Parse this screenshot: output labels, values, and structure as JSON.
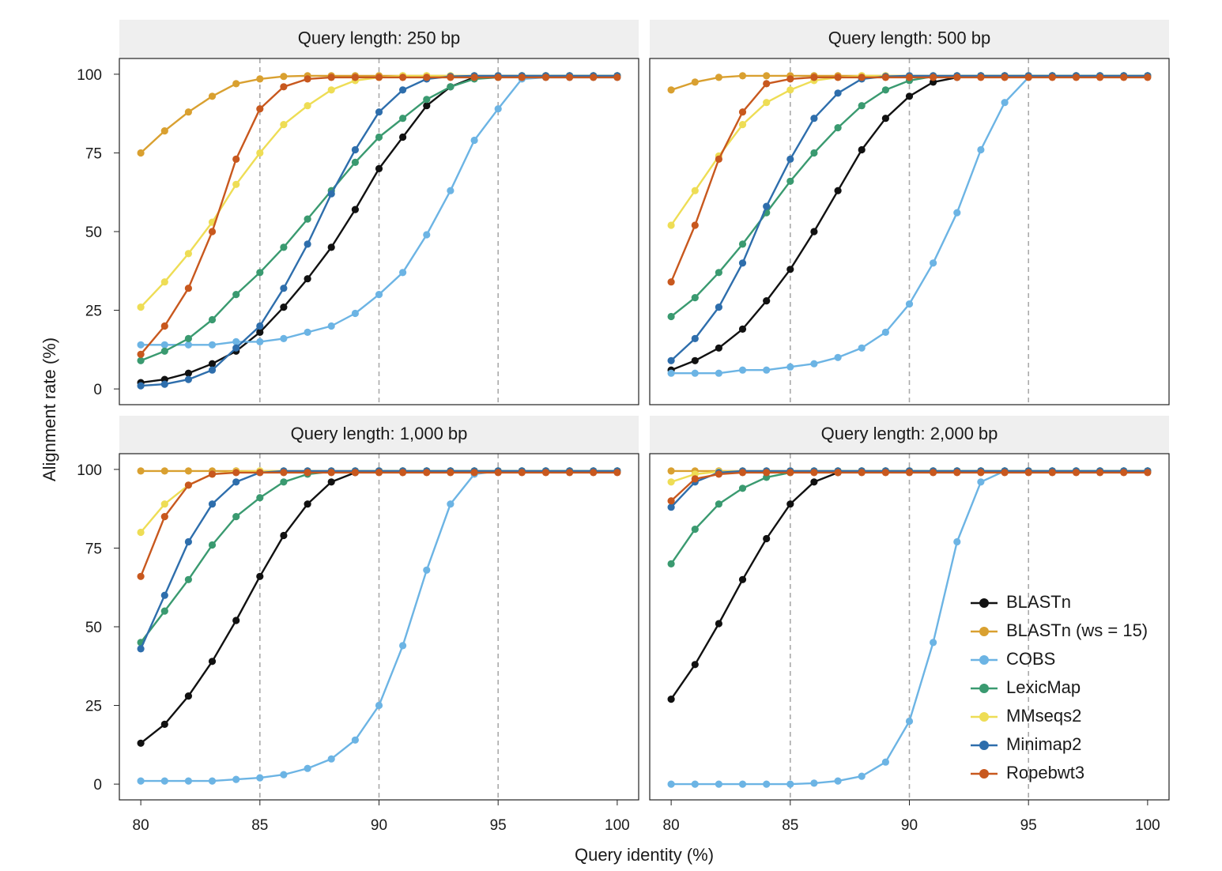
{
  "xlabel": "Query identity (%)",
  "ylabel": "Alignment rate (%)",
  "xticks": [
    "80",
    "85",
    "90",
    "95",
    "100"
  ],
  "yticks": [
    "0",
    "25",
    "50",
    "75",
    "100"
  ],
  "panels": [
    {
      "title": "Query length: 250 bp"
    },
    {
      "title": "Query length: 500 bp"
    },
    {
      "title": "Query length: 1,000 bp"
    },
    {
      "title": "Query length: 2,000 bp"
    }
  ],
  "legend": [
    {
      "label": "BLASTn",
      "color": "#111111"
    },
    {
      "label": "BLASTn (ws = 15)",
      "color": "#D9A030"
    },
    {
      "label": "COBS",
      "color": "#6CB4E4"
    },
    {
      "label": "LexicMap",
      "color": "#3A9A70"
    },
    {
      "label": "MMseqs2",
      "color": "#EEDD55"
    },
    {
      "label": "Minimap2",
      "color": "#2E6EAC"
    },
    {
      "label": "Ropebwt3",
      "color": "#C8581E"
    }
  ],
  "chart_data": [
    {
      "type": "line",
      "title": "Query length: 250 bp",
      "xlabel": "Query identity (%)",
      "ylabel": "Alignment rate (%)",
      "xlim": [
        79.1,
        100.9
      ],
      "ylim": [
        -5,
        105
      ],
      "reference_lines_x": [
        85,
        90,
        95
      ],
      "x": [
        80,
        81,
        82,
        83,
        84,
        85,
        86,
        87,
        88,
        89,
        90,
        91,
        92,
        93,
        94,
        95,
        96,
        97,
        98,
        99,
        100
      ],
      "series": [
        {
          "name": "BLASTn",
          "color": "#111111",
          "values": [
            2,
            3,
            5,
            8,
            12,
            18,
            26,
            35,
            45,
            57,
            70,
            80,
            90,
            96,
            99,
            99.5,
            99.5,
            99.5,
            99.5,
            99.5,
            99.5
          ]
        },
        {
          "name": "BLASTn (ws = 15)",
          "color": "#D9A030",
          "values": [
            75,
            82,
            88,
            93,
            97,
            98.5,
            99.3,
            99.5,
            99.5,
            99.5,
            99.5,
            99.5,
            99.5,
            99.5,
            99.5,
            99.5,
            99.5,
            99.5,
            99.5,
            99.5,
            99.5
          ]
        },
        {
          "name": "COBS",
          "color": "#6CB4E4",
          "values": [
            14,
            14,
            14,
            14,
            15,
            15,
            16,
            18,
            20,
            24,
            30,
            37,
            49,
            63,
            79,
            89,
            98.5,
            99,
            99,
            99,
            99
          ]
        },
        {
          "name": "LexicMap",
          "color": "#3A9A70",
          "values": [
            9,
            12,
            16,
            22,
            30,
            37,
            45,
            54,
            63,
            72,
            80,
            86,
            92,
            96,
            98.5,
            99,
            99.5,
            99.5,
            99.5,
            99.5,
            99.5
          ]
        },
        {
          "name": "MMseqs2",
          "color": "#EEDD55",
          "values": [
            26,
            34,
            43,
            53,
            65,
            75,
            84,
            90,
            95,
            98,
            99,
            99.5,
            99.5,
            99.5,
            99.5,
            99.5,
            99.5,
            99.5,
            99.5,
            99.5,
            99.5
          ]
        },
        {
          "name": "Minimap2",
          "color": "#2E6EAC",
          "values": [
            1,
            1.5,
            3,
            6,
            13,
            20,
            32,
            46,
            62,
            76,
            88,
            95,
            98.5,
            99.3,
            99.5,
            99.5,
            99.5,
            99.5,
            99.5,
            99.5,
            99.5
          ]
        },
        {
          "name": "Ropebwt3",
          "color": "#C8581E",
          "values": [
            11,
            20,
            32,
            50,
            73,
            89,
            96,
            98.5,
            99,
            99,
            99,
            99,
            99,
            99,
            99,
            99,
            99,
            99,
            99,
            99,
            99
          ]
        }
      ]
    },
    {
      "type": "line",
      "title": "Query length: 500 bp",
      "xlabel": "Query identity (%)",
      "ylabel": "Alignment rate (%)",
      "xlim": [
        79.1,
        100.9
      ],
      "ylim": [
        -5,
        105
      ],
      "reference_lines_x": [
        85,
        90,
        95
      ],
      "x": [
        80,
        81,
        82,
        83,
        84,
        85,
        86,
        87,
        88,
        89,
        90,
        91,
        92,
        93,
        94,
        95,
        96,
        97,
        98,
        99,
        100
      ],
      "series": [
        {
          "name": "BLASTn",
          "color": "#111111",
          "values": [
            6,
            9,
            13,
            19,
            28,
            38,
            50,
            63,
            76,
            86,
            93,
            97.5,
            99,
            99.5,
            99.5,
            99.5,
            99.5,
            99.5,
            99.5,
            99.5,
            99.5
          ]
        },
        {
          "name": "BLASTn (ws = 15)",
          "color": "#D9A030",
          "values": [
            95,
            97.5,
            99,
            99.5,
            99.5,
            99.5,
            99.5,
            99.5,
            99.5,
            99.5,
            99.5,
            99.5,
            99.5,
            99.5,
            99.5,
            99.5,
            99.5,
            99.5,
            99.5,
            99.5,
            99.5
          ]
        },
        {
          "name": "COBS",
          "color": "#6CB4E4",
          "values": [
            5,
            5,
            5,
            6,
            6,
            7,
            8,
            10,
            13,
            18,
            27,
            40,
            56,
            76,
            91,
            99,
            99.5,
            99.5,
            99.5,
            99.5,
            99.5
          ]
        },
        {
          "name": "LexicMap",
          "color": "#3A9A70",
          "values": [
            23,
            29,
            37,
            46,
            56,
            66,
            75,
            83,
            90,
            95,
            98,
            99.3,
            99.5,
            99.5,
            99.5,
            99.5,
            99.5,
            99.5,
            99.5,
            99.5,
            99.5
          ]
        },
        {
          "name": "MMseqs2",
          "color": "#EEDD55",
          "values": [
            52,
            63,
            74,
            84,
            91,
            95,
            98,
            99,
            99.5,
            99.5,
            99.5,
            99.5,
            99.5,
            99.5,
            99.5,
            99.5,
            99.5,
            99.5,
            99.5,
            99.5,
            99.5
          ]
        },
        {
          "name": "Minimap2",
          "color": "#2E6EAC",
          "values": [
            9,
            16,
            26,
            40,
            58,
            73,
            86,
            94,
            98.5,
            99.3,
            99.5,
            99.5,
            99.5,
            99.5,
            99.5,
            99.5,
            99.5,
            99.5,
            99.5,
            99.5,
            99.5
          ]
        },
        {
          "name": "Ropebwt3",
          "color": "#C8581E",
          "values": [
            34,
            52,
            73,
            88,
            97,
            98.5,
            99,
            99,
            99,
            99,
            99,
            99,
            99,
            99,
            99,
            99,
            99,
            99,
            99,
            99,
            99
          ]
        }
      ]
    },
    {
      "type": "line",
      "title": "Query length: 1,000 bp",
      "xlabel": "Query identity (%)",
      "ylabel": "Alignment rate (%)",
      "xlim": [
        79.1,
        100.9
      ],
      "ylim": [
        -5,
        105
      ],
      "reference_lines_x": [
        85,
        90,
        95
      ],
      "x": [
        80,
        81,
        82,
        83,
        84,
        85,
        86,
        87,
        88,
        89,
        90,
        91,
        92,
        93,
        94,
        95,
        96,
        97,
        98,
        99,
        100
      ],
      "series": [
        {
          "name": "BLASTn",
          "color": "#111111",
          "values": [
            13,
            19,
            28,
            39,
            52,
            66,
            79,
            89,
            96,
            99,
            99.5,
            99.5,
            99.5,
            99.5,
            99.5,
            99.5,
            99.5,
            99.5,
            99.5,
            99.5,
            99.5
          ]
        },
        {
          "name": "BLASTn (ws = 15)",
          "color": "#D9A030",
          "values": [
            99.5,
            99.5,
            99.5,
            99.5,
            99.5,
            99.5,
            99.5,
            99.5,
            99.5,
            99.5,
            99.5,
            99.5,
            99.5,
            99.5,
            99.5,
            99.5,
            99.5,
            99.5,
            99.5,
            99.5,
            99.5
          ]
        },
        {
          "name": "COBS",
          "color": "#6CB4E4",
          "values": [
            1,
            1,
            1,
            1,
            1.5,
            2,
            3,
            5,
            8,
            14,
            25,
            44,
            68,
            89,
            98.5,
            99.5,
            99.5,
            99.5,
            99.5,
            99.5,
            99.5
          ]
        },
        {
          "name": "LexicMap",
          "color": "#3A9A70",
          "values": [
            45,
            55,
            65,
            76,
            85,
            91,
            96,
            98.5,
            99.3,
            99.5,
            99.5,
            99.5,
            99.5,
            99.5,
            99.5,
            99.5,
            99.5,
            99.5,
            99.5,
            99.5,
            99.5
          ]
        },
        {
          "name": "MMseqs2",
          "color": "#EEDD55",
          "values": [
            80,
            89,
            95,
            98.5,
            99.3,
            99.5,
            99.5,
            99.5,
            99.5,
            99.5,
            99.5,
            99.5,
            99.5,
            99.5,
            99.5,
            99.5,
            99.5,
            99.5,
            99.5,
            99.5,
            99.5
          ]
        },
        {
          "name": "Minimap2",
          "color": "#2E6EAC",
          "values": [
            43,
            60,
            77,
            89,
            96,
            99,
            99.5,
            99.5,
            99.5,
            99.5,
            99.5,
            99.5,
            99.5,
            99.5,
            99.5,
            99.5,
            99.5,
            99.5,
            99.5,
            99.5,
            99.5
          ]
        },
        {
          "name": "Ropebwt3",
          "color": "#C8581E",
          "values": [
            66,
            85,
            95,
            98.5,
            99,
            99,
            99,
            99,
            99,
            99,
            99,
            99,
            99,
            99,
            99,
            99,
            99,
            99,
            99,
            99,
            99
          ]
        }
      ]
    },
    {
      "type": "line",
      "title": "Query length: 2,000 bp",
      "xlabel": "Query identity (%)",
      "ylabel": "Alignment rate (%)",
      "xlim": [
        79.1,
        100.9
      ],
      "ylim": [
        -5,
        105
      ],
      "reference_lines_x": [
        85,
        90,
        95
      ],
      "legend_position": "bottom-right",
      "x": [
        80,
        81,
        82,
        83,
        84,
        85,
        86,
        87,
        88,
        89,
        90,
        91,
        92,
        93,
        94,
        95,
        96,
        97,
        98,
        99,
        100
      ],
      "series": [
        {
          "name": "BLASTn",
          "color": "#111111",
          "values": [
            27,
            38,
            51,
            65,
            78,
            89,
            96,
            99,
            99.5,
            99.5,
            99.5,
            99.5,
            99.5,
            99.5,
            99.5,
            99.5,
            99.5,
            99.5,
            99.5,
            99.5,
            99.5
          ]
        },
        {
          "name": "BLASTn (ws = 15)",
          "color": "#D9A030",
          "values": [
            99.5,
            99.5,
            99.5,
            99.5,
            99.5,
            99.5,
            99.5,
            99.5,
            99.5,
            99.5,
            99.5,
            99.5,
            99.5,
            99.5,
            99.5,
            99.5,
            99.5,
            99.5,
            99.5,
            99.5,
            99.5
          ]
        },
        {
          "name": "COBS",
          "color": "#6CB4E4",
          "values": [
            0,
            0,
            0,
            0,
            0,
            0,
            0.3,
            1,
            2.5,
            7,
            20,
            45,
            77,
            96,
            99.5,
            99.5,
            99.5,
            99.5,
            99.5,
            99.5,
            99.5
          ]
        },
        {
          "name": "LexicMap",
          "color": "#3A9A70",
          "values": [
            70,
            81,
            89,
            94,
            97.5,
            99,
            99.5,
            99.5,
            99.5,
            99.5,
            99.5,
            99.5,
            99.5,
            99.5,
            99.5,
            99.5,
            99.5,
            99.5,
            99.5,
            99.5,
            99.5
          ]
        },
        {
          "name": "MMseqs2",
          "color": "#EEDD55",
          "values": [
            96,
            98.5,
            99.3,
            99.5,
            99.5,
            99.5,
            99.5,
            99.5,
            99.5,
            99.5,
            99.5,
            99.5,
            99.5,
            99.5,
            99.5,
            99.5,
            99.5,
            99.5,
            99.5,
            99.5,
            99.5
          ]
        },
        {
          "name": "Minimap2",
          "color": "#2E6EAC",
          "values": [
            88,
            96,
            99,
            99.5,
            99.5,
            99.5,
            99.5,
            99.5,
            99.5,
            99.5,
            99.5,
            99.5,
            99.5,
            99.5,
            99.5,
            99.5,
            99.5,
            99.5,
            99.5,
            99.5,
            99.5
          ]
        },
        {
          "name": "Ropebwt3",
          "color": "#C8581E",
          "values": [
            90,
            97,
            98.5,
            99,
            99,
            99,
            99,
            99,
            99,
            99,
            99,
            99,
            99,
            99,
            99,
            99,
            99,
            99,
            99,
            99,
            99
          ]
        }
      ]
    }
  ]
}
